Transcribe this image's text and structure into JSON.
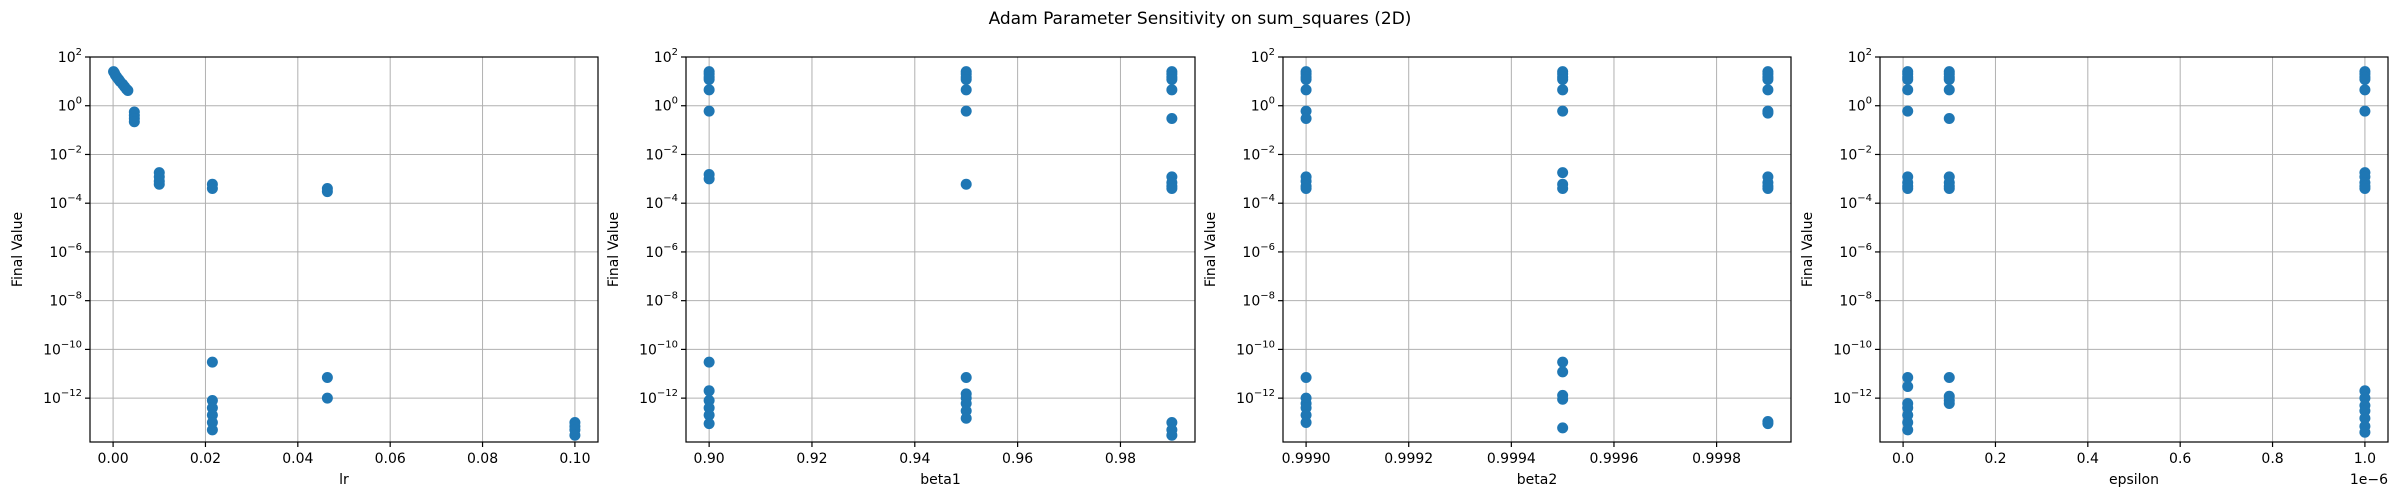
{
  "title": "Adam Parameter Sensitivity on sum_squares (2D)",
  "colors": {
    "marker": "#1f77b4",
    "grid": "#b0b0b0"
  },
  "chart_data": [
    {
      "type": "scatter",
      "xlabel": "lr",
      "ylabel": "Final Value",
      "xscale": "linear",
      "yscale": "log",
      "xlim": [
        -0.005,
        0.105
      ],
      "ylim_log10": [
        -13.8,
        2
      ],
      "xticks": [
        0.0,
        0.02,
        0.04,
        0.06,
        0.08,
        0.1
      ],
      "xtick_labels": [
        "0.00",
        "0.02",
        "0.04",
        "0.06",
        "0.08",
        "0.10"
      ],
      "xoffset_label": "",
      "yticks_log10": [
        2,
        0,
        -2,
        -4,
        -6,
        -8,
        -10,
        -12
      ],
      "ytick_labels": [
        "10",
        "10",
        "10",
        "10",
        "10",
        "10",
        "10",
        "10"
      ],
      "ytick_exponents": [
        "2",
        "0",
        "−2",
        "−4",
        "−6",
        "−8",
        "−10",
        "−12"
      ],
      "points": [
        [
          0.0001,
          25
        ],
        [
          0.0003,
          22
        ],
        [
          0.0005,
          18
        ],
        [
          0.0008,
          15
        ],
        [
          0.0012,
          12
        ],
        [
          0.0015,
          10
        ],
        [
          0.0021,
          7.5
        ],
        [
          0.0025,
          6
        ],
        [
          0.0029,
          4.8
        ],
        [
          0.0032,
          4.2
        ],
        [
          0.0046,
          0.55
        ],
        [
          0.0046,
          0.4
        ],
        [
          0.0046,
          0.3
        ],
        [
          0.0046,
          0.22
        ],
        [
          0.01,
          0.0018
        ],
        [
          0.01,
          0.0012
        ],
        [
          0.01,
          0.0008
        ],
        [
          0.01,
          0.0006
        ],
        [
          0.0215,
          0.0006
        ],
        [
          0.0215,
          0.0004
        ],
        [
          0.0215,
          3e-11
        ],
        [
          0.0215,
          8e-13
        ],
        [
          0.0215,
          4e-13
        ],
        [
          0.0215,
          2e-13
        ],
        [
          0.0215,
          1e-13
        ],
        [
          0.0215,
          5e-14
        ],
        [
          0.0464,
          0.0004
        ],
        [
          0.0464,
          0.0003
        ],
        [
          0.0464,
          7e-12
        ],
        [
          0.0464,
          1e-12
        ],
        [
          0.1,
          1e-13
        ],
        [
          0.1,
          7e-14
        ],
        [
          0.1,
          5e-14
        ],
        [
          0.1,
          3e-14
        ]
      ]
    },
    {
      "type": "scatter",
      "xlabel": "beta1",
      "ylabel": "Final Value",
      "xscale": "linear",
      "yscale": "log",
      "xlim": [
        0.8955,
        0.9945
      ],
      "ylim_log10": [
        -13.8,
        2
      ],
      "xticks": [
        0.9,
        0.92,
        0.94,
        0.96,
        0.98
      ],
      "xtick_labels": [
        "0.90",
        "0.92",
        "0.94",
        "0.96",
        "0.98"
      ],
      "xoffset_label": "",
      "yticks_log10": [
        2,
        0,
        -2,
        -4,
        -6,
        -8,
        -10,
        -12
      ],
      "ytick_labels": [
        "10",
        "10",
        "10",
        "10",
        "10",
        "10",
        "10",
        "10"
      ],
      "ytick_exponents": [
        "2",
        "0",
        "−2",
        "−4",
        "−6",
        "−8",
        "−10",
        "−12"
      ],
      "points": [
        [
          0.9,
          25
        ],
        [
          0.9,
          20
        ],
        [
          0.9,
          15
        ],
        [
          0.9,
          12
        ],
        [
          0.9,
          4.5
        ],
        [
          0.9,
          0.6
        ],
        [
          0.9,
          0.0015
        ],
        [
          0.9,
          0.001
        ],
        [
          0.9,
          3e-11
        ],
        [
          0.9,
          2e-12
        ],
        [
          0.9,
          8e-13
        ],
        [
          0.9,
          4e-13
        ],
        [
          0.9,
          2e-13
        ],
        [
          0.9,
          9e-14
        ],
        [
          0.95,
          25
        ],
        [
          0.95,
          20
        ],
        [
          0.95,
          15
        ],
        [
          0.95,
          12
        ],
        [
          0.95,
          4.5
        ],
        [
          0.95,
          0.6
        ],
        [
          0.95,
          0.0006
        ],
        [
          0.95,
          7e-12
        ],
        [
          0.95,
          1.5e-12
        ],
        [
          0.95,
          1e-12
        ],
        [
          0.95,
          6e-13
        ],
        [
          0.95,
          3e-13
        ],
        [
          0.95,
          1.5e-13
        ],
        [
          0.99,
          25
        ],
        [
          0.99,
          20
        ],
        [
          0.99,
          15
        ],
        [
          0.99,
          12
        ],
        [
          0.99,
          4.5
        ],
        [
          0.99,
          0.3
        ],
        [
          0.99,
          0.0012
        ],
        [
          0.99,
          0.0007
        ],
        [
          0.99,
          0.0005
        ],
        [
          0.99,
          0.0004
        ],
        [
          0.99,
          1e-13
        ],
        [
          0.99,
          5e-14
        ],
        [
          0.99,
          3e-14
        ]
      ]
    },
    {
      "type": "scatter",
      "xlabel": "beta2",
      "ylabel": "Final Value",
      "xscale": "linear",
      "yscale": "log",
      "xlim": [
        0.998955,
        0.999945
      ],
      "ylim_log10": [
        -13.8,
        2
      ],
      "xticks": [
        0.999,
        0.9992,
        0.9994,
        0.9996,
        0.9998
      ],
      "xtick_labels": [
        "0.9990",
        "0.9992",
        "0.9994",
        "0.9996",
        "0.9998"
      ],
      "xoffset_label": "",
      "yticks_log10": [
        2,
        0,
        -2,
        -4,
        -6,
        -8,
        -10,
        -12
      ],
      "ytick_labels": [
        "10",
        "10",
        "10",
        "10",
        "10",
        "10",
        "10",
        "10"
      ],
      "ytick_exponents": [
        "2",
        "0",
        "−2",
        "−4",
        "−6",
        "−8",
        "−10",
        "−12"
      ],
      "points": [
        [
          0.999,
          25
        ],
        [
          0.999,
          20
        ],
        [
          0.999,
          15
        ],
        [
          0.999,
          12
        ],
        [
          0.999,
          4.5
        ],
        [
          0.999,
          0.6
        ],
        [
          0.999,
          0.3
        ],
        [
          0.999,
          0.0012
        ],
        [
          0.999,
          0.0008
        ],
        [
          0.999,
          0.0005
        ],
        [
          0.999,
          0.0004
        ],
        [
          0.999,
          7e-12
        ],
        [
          0.999,
          1e-12
        ],
        [
          0.999,
          6e-13
        ],
        [
          0.999,
          4e-13
        ],
        [
          0.999,
          2e-13
        ],
        [
          0.999,
          1e-13
        ],
        [
          0.9995,
          25
        ],
        [
          0.9995,
          20
        ],
        [
          0.9995,
          15
        ],
        [
          0.9995,
          12
        ],
        [
          0.9995,
          4.5
        ],
        [
          0.9995,
          0.6
        ],
        [
          0.9995,
          0.0018
        ],
        [
          0.9995,
          0.0006
        ],
        [
          0.9995,
          0.0004
        ],
        [
          0.9995,
          3e-11
        ],
        [
          0.9995,
          1.2e-11
        ],
        [
          0.9995,
          1.3e-12
        ],
        [
          0.9995,
          9e-13
        ],
        [
          0.9995,
          6e-14
        ],
        [
          0.9999,
          25
        ],
        [
          0.9999,
          20
        ],
        [
          0.9999,
          15
        ],
        [
          0.9999,
          12
        ],
        [
          0.9999,
          4.5
        ],
        [
          0.9999,
          0.6
        ],
        [
          0.9999,
          0.5
        ],
        [
          0.9999,
          0.0012
        ],
        [
          0.9999,
          0.0007
        ],
        [
          0.9999,
          0.0005
        ],
        [
          0.9999,
          0.0004
        ],
        [
          0.9999,
          1.1e-13
        ],
        [
          0.9999,
          9e-14
        ]
      ]
    },
    {
      "type": "scatter",
      "xlabel": "epsilon",
      "ylabel": "Final Value",
      "xscale": "linear",
      "yscale": "log",
      "xlim": [
        -0.05,
        1.05
      ],
      "ylim_log10": [
        -13.8,
        2
      ],
      "xticks": [
        0.0,
        0.2,
        0.4,
        0.6,
        0.8,
        1.0
      ],
      "xtick_labels": [
        "0.0",
        "0.2",
        "0.4",
        "0.6",
        "0.8",
        "1.0"
      ],
      "xoffset_label": "1e−6",
      "yticks_log10": [
        2,
        0,
        -2,
        -4,
        -6,
        -8,
        -10,
        -12
      ],
      "ytick_labels": [
        "10",
        "10",
        "10",
        "10",
        "10",
        "10",
        "10",
        "10"
      ],
      "ytick_exponents": [
        "2",
        "0",
        "−2",
        "−4",
        "−6",
        "−8",
        "−10",
        "−12"
      ],
      "points": [
        [
          0.01,
          25
        ],
        [
          0.01,
          20
        ],
        [
          0.01,
          15
        ],
        [
          0.01,
          12
        ],
        [
          0.01,
          4.5
        ],
        [
          0.01,
          0.6
        ],
        [
          0.01,
          0.0012
        ],
        [
          0.01,
          0.0007
        ],
        [
          0.01,
          0.0005
        ],
        [
          0.01,
          0.0004
        ],
        [
          0.01,
          7e-12
        ],
        [
          0.01,
          3e-12
        ],
        [
          0.01,
          6e-13
        ],
        [
          0.01,
          4e-13
        ],
        [
          0.01,
          2e-13
        ],
        [
          0.01,
          1e-13
        ],
        [
          0.01,
          5e-14
        ],
        [
          0.1,
          25
        ],
        [
          0.1,
          20
        ],
        [
          0.1,
          15
        ],
        [
          0.1,
          12
        ],
        [
          0.1,
          4.5
        ],
        [
          0.1,
          0.3
        ],
        [
          0.1,
          0.0012
        ],
        [
          0.1,
          0.0007
        ],
        [
          0.1,
          0.0005
        ],
        [
          0.1,
          0.0004
        ],
        [
          0.1,
          7e-12
        ],
        [
          0.1,
          1.2e-12
        ],
        [
          0.1,
          8e-13
        ],
        [
          0.1,
          6e-13
        ],
        [
          1.0,
          25
        ],
        [
          1.0,
          20
        ],
        [
          1.0,
          15
        ],
        [
          1.0,
          12
        ],
        [
          1.0,
          4.5
        ],
        [
          1.0,
          0.6
        ],
        [
          1.0,
          0.0018
        ],
        [
          1.0,
          0.0012
        ],
        [
          1.0,
          0.0007
        ],
        [
          1.0,
          0.0005
        ],
        [
          1.0,
          0.0004
        ],
        [
          1.0,
          2e-12
        ],
        [
          1.0,
          1e-12
        ],
        [
          1.0,
          5e-13
        ],
        [
          1.0,
          3e-13
        ],
        [
          1.0,
          1.5e-13
        ],
        [
          1.0,
          7e-14
        ],
        [
          1.0,
          4e-14
        ]
      ]
    }
  ]
}
